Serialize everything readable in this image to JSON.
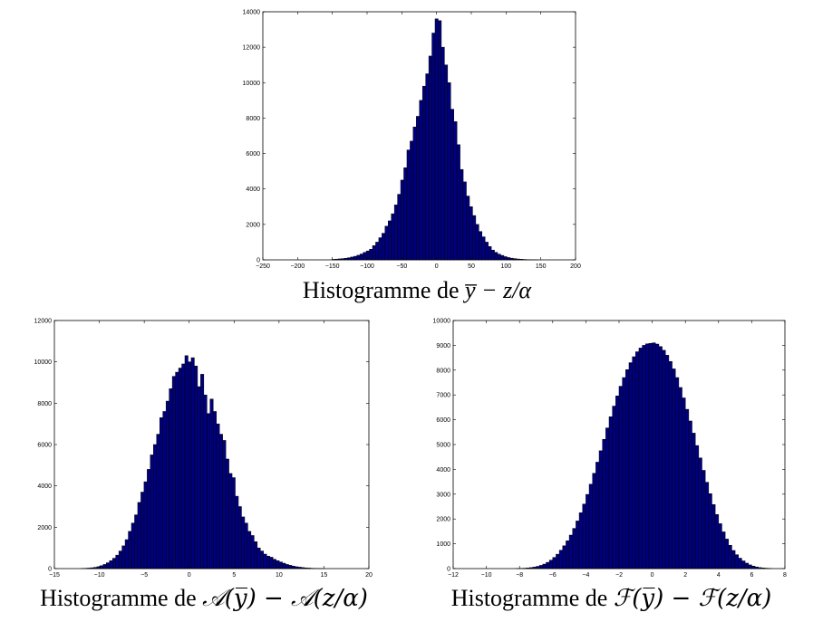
{
  "colors": {
    "bar_fill": "#00007f",
    "bar_stroke": "#000000",
    "axes": "#000000",
    "background": "#ffffff"
  },
  "captions": [
    {
      "prefix": "Histogramme de",
      "math": "y̅ − z/α"
    },
    {
      "prefix": "Histogramme de",
      "math": "𝒜(y̅) − 𝒜(z/α)"
    },
    {
      "prefix": "Histogramme de",
      "math": "ℱ(y̅) − ℱ(z/α)"
    }
  ],
  "chart_data": [
    {
      "type": "bar",
      "title": "Histogramme de y̅ − z/α",
      "xlim": [
        -250,
        200
      ],
      "ylim": [
        0,
        14000
      ],
      "xticks": [
        -250,
        -200,
        -150,
        -100,
        -50,
        0,
        50,
        100,
        150,
        200
      ],
      "yticks": [
        0,
        2000,
        4000,
        6000,
        8000,
        10000,
        12000,
        14000
      ],
      "bin_width": 4.5,
      "bin_centers": [
        -148.4,
        -143.9,
        -139.4,
        -134.9,
        -130.4,
        -125.9,
        -121.4,
        -116.9,
        -112.4,
        -107.9,
        -103.4,
        -98.9,
        -94.4,
        -89.9,
        -85.4,
        -80.9,
        -76.4,
        -71.9,
        -67.4,
        -62.9,
        -58.4,
        -53.9,
        -49.4,
        -44.9,
        -40.4,
        -35.9,
        -31.4,
        -26.9,
        -22.4,
        -17.9,
        -13.4,
        -8.9,
        -4.4,
        0.1,
        4.6,
        9.1,
        13.6,
        18.1,
        22.6,
        27.1,
        31.6,
        36.1,
        40.6,
        45.1,
        49.6,
        54.1,
        58.6,
        63.1,
        67.6,
        72.1,
        76.6,
        81.1,
        85.6,
        90.1,
        94.6,
        99.1,
        103.6,
        108.1,
        112.6,
        117.1,
        121.6,
        126.1,
        130.6,
        135.1,
        139.6,
        144.1
      ],
      "values": [
        30,
        40,
        55,
        70,
        90,
        120,
        160,
        200,
        260,
        330,
        420,
        500,
        600,
        800,
        1000,
        1250,
        1500,
        1900,
        2200,
        2600,
        3100,
        3700,
        4500,
        5200,
        6200,
        6700,
        7500,
        8100,
        9000,
        9800,
        10500,
        11500,
        12800,
        13600,
        13500,
        12000,
        11000,
        10000,
        8500,
        7800,
        6500,
        5100,
        4400,
        3600,
        3000,
        2500,
        2000,
        1600,
        1300,
        1000,
        750,
        550,
        420,
        320,
        250,
        180,
        130,
        95,
        70,
        50,
        35,
        25,
        15,
        10,
        6,
        3
      ]
    },
    {
      "type": "bar",
      "title": "Histogramme de 𝒜(y̅) − 𝒜(z/α)",
      "xlim": [
        -15,
        20
      ],
      "ylim": [
        0,
        12000
      ],
      "xticks": [
        -15,
        -10,
        -5,
        0,
        5,
        10,
        15,
        20
      ],
      "yticks": [
        0,
        2000,
        4000,
        6000,
        8000,
        10000,
        12000
      ],
      "bin_width": 0.35,
      "bin_centers": [
        -11.85,
        -11.5,
        -11.15,
        -10.8,
        -10.45,
        -10.1,
        -9.75,
        -9.4,
        -9.05,
        -8.7,
        -8.35,
        -8.0,
        -7.65,
        -7.3,
        -6.95,
        -6.6,
        -6.25,
        -5.9,
        -5.55,
        -5.2,
        -4.85,
        -4.5,
        -4.15,
        -3.8,
        -3.45,
        -3.1,
        -2.75,
        -2.4,
        -2.05,
        -1.7,
        -1.35,
        -1.0,
        -0.65,
        -0.3,
        0.05,
        0.4,
        0.75,
        1.1,
        1.45,
        1.8,
        2.15,
        2.5,
        2.85,
        3.2,
        3.55,
        3.9,
        4.25,
        4.6,
        4.95,
        5.3,
        5.65,
        6.0,
        6.35,
        6.7,
        7.05,
        7.4,
        7.75,
        8.1,
        8.45,
        8.8,
        9.15,
        9.5,
        9.85,
        10.2,
        10.55,
        10.9,
        11.25,
        11.6,
        11.95,
        12.3,
        12.65,
        13.0,
        13.35,
        13.7,
        14.05,
        14.4,
        14.75
      ],
      "values": [
        10,
        15,
        25,
        40,
        60,
        90,
        140,
        200,
        280,
        380,
        500,
        650,
        850,
        1100,
        1400,
        1800,
        2200,
        2600,
        3200,
        3700,
        4200,
        4800,
        5500,
        6000,
        6500,
        7300,
        7600,
        8100,
        8700,
        9300,
        9500,
        9700,
        9900,
        10300,
        10000,
        10200,
        9800,
        8800,
        9400,
        8400,
        7500,
        8200,
        7600,
        7000,
        6500,
        6200,
        5300,
        4600,
        4400,
        3500,
        3000,
        2500,
        2200,
        1800,
        1600,
        1300,
        1000,
        850,
        700,
        600,
        550,
        450,
        380,
        320,
        260,
        200,
        160,
        120,
        90,
        70,
        50,
        35,
        25,
        15,
        10,
        6,
        3
      ]
    },
    {
      "type": "bar",
      "title": "Histogramme de ℱ(y̅) − ℱ(z/α)",
      "xlim": [
        -12,
        8
      ],
      "ylim": [
        0,
        10000
      ],
      "xticks": [
        -12,
        -10,
        -8,
        -6,
        -4,
        -2,
        0,
        2,
        4,
        6,
        8
      ],
      "yticks": [
        0,
        1000,
        2000,
        3000,
        4000,
        5000,
        6000,
        7000,
        8000,
        9000,
        10000
      ],
      "bin_width": 0.2,
      "bin_centers": [
        -8.1,
        -7.9,
        -7.7,
        -7.5,
        -7.3,
        -7.1,
        -6.9,
        -6.7,
        -6.5,
        -6.3,
        -6.1,
        -5.9,
        -5.7,
        -5.5,
        -5.3,
        -5.1,
        -4.9,
        -4.7,
        -4.5,
        -4.3,
        -4.1,
        -3.9,
        -3.7,
        -3.5,
        -3.3,
        -3.1,
        -2.9,
        -2.7,
        -2.5,
        -2.3,
        -2.1,
        -1.9,
        -1.7,
        -1.5,
        -1.3,
        -1.1,
        -0.9,
        -0.7,
        -0.5,
        -0.3,
        -0.1,
        0.1,
        0.3,
        0.5,
        0.7,
        0.9,
        1.1,
        1.3,
        1.5,
        1.7,
        1.9,
        2.1,
        2.3,
        2.5,
        2.7,
        2.9,
        3.1,
        3.3,
        3.5,
        3.7,
        3.9,
        4.1,
        4.3,
        4.5,
        4.7,
        4.9,
        5.1,
        5.3,
        5.5,
        5.7,
        5.9,
        6.1,
        6.3,
        6.5,
        6.7,
        6.9,
        7.1
      ],
      "values": [
        5,
        10,
        15,
        25,
        40,
        60,
        90,
        130,
        180,
        250,
        340,
        450,
        580,
        740,
        920,
        1120,
        1350,
        1620,
        1920,
        2250,
        2600,
        2990,
        3400,
        3840,
        4290,
        4750,
        5210,
        5670,
        6120,
        6550,
        6960,
        7350,
        7700,
        8020,
        8300,
        8540,
        8740,
        8890,
        9000,
        9060,
        9080,
        9100,
        9050,
        8950,
        8800,
        8600,
        8350,
        8050,
        7700,
        7300,
        6880,
        6420,
        5950,
        5460,
        4960,
        4460,
        3960,
        3480,
        3020,
        2580,
        2180,
        1810,
        1480,
        1190,
        940,
        730,
        560,
        420,
        310,
        220,
        150,
        100,
        65,
        40,
        25,
        15,
        8
      ]
    }
  ]
}
